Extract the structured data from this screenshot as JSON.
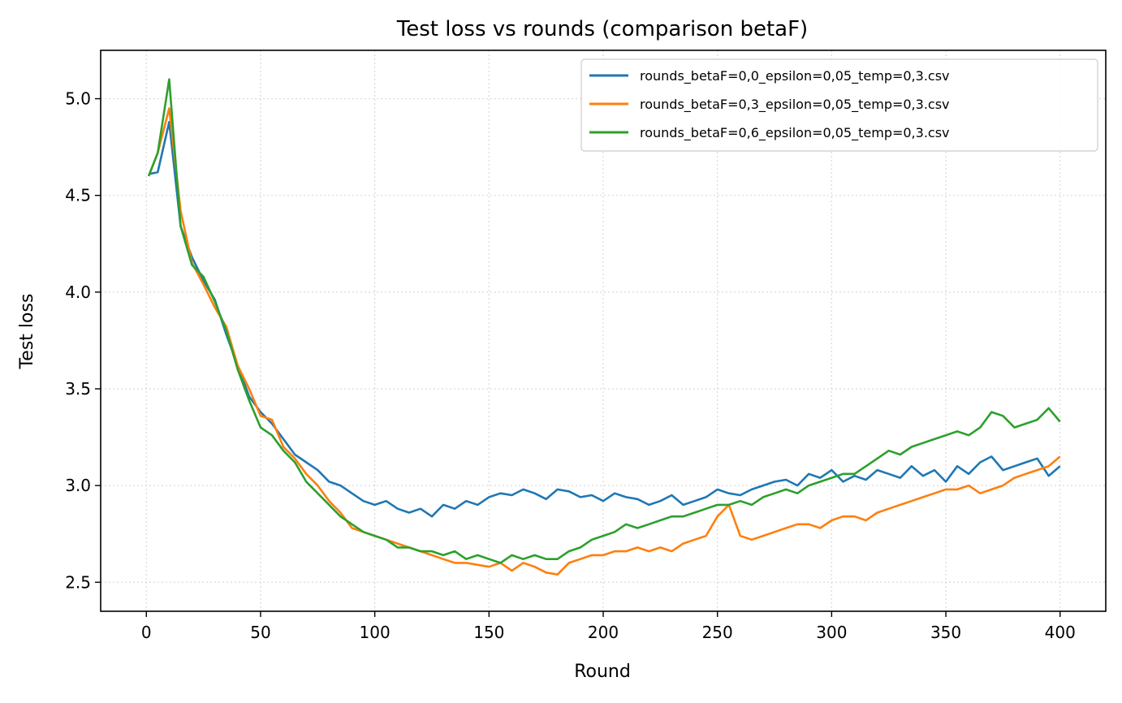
{
  "chart_data": {
    "type": "line",
    "title": "Test loss vs rounds (comparison betaF)",
    "xlabel": "Round",
    "ylabel": "Test loss",
    "xlim": [
      -20,
      420
    ],
    "ylim": [
      2.35,
      5.25
    ],
    "xticks": [
      0,
      50,
      100,
      150,
      200,
      250,
      300,
      350,
      400
    ],
    "yticks": [
      2.5,
      3.0,
      3.5,
      4.0,
      4.5,
      5.0
    ],
    "xtick_labels": [
      "0",
      "50",
      "100",
      "150",
      "200",
      "250",
      "300",
      "350",
      "400"
    ],
    "ytick_labels": [
      "2.5",
      "3.0",
      "3.5",
      "4.0",
      "4.5",
      "5.0"
    ],
    "grid": true,
    "legend_position": "top-right",
    "x_sampled_every": 5,
    "x": [
      1,
      5,
      10,
      15,
      20,
      25,
      30,
      35,
      40,
      45,
      50,
      55,
      60,
      65,
      70,
      75,
      80,
      85,
      90,
      95,
      100,
      105,
      110,
      115,
      120,
      125,
      130,
      135,
      140,
      145,
      150,
      155,
      160,
      165,
      170,
      175,
      180,
      185,
      190,
      195,
      200,
      205,
      210,
      215,
      220,
      225,
      230,
      235,
      240,
      245,
      250,
      255,
      260,
      265,
      270,
      275,
      280,
      285,
      290,
      295,
      300,
      305,
      310,
      315,
      320,
      325,
      330,
      335,
      340,
      345,
      350,
      355,
      360,
      365,
      370,
      375,
      380,
      385,
      390,
      395,
      400
    ],
    "series": [
      {
        "name": "rounds_betaF=0,0_epsilon=0,05_temp=0,3.csv",
        "color": "#1f77b4",
        "values": [
          4.61,
          4.62,
          4.88,
          4.34,
          4.18,
          4.06,
          3.96,
          3.78,
          3.62,
          3.46,
          3.38,
          3.32,
          3.24,
          3.16,
          3.12,
          3.08,
          3.02,
          3.0,
          2.96,
          2.92,
          2.9,
          2.92,
          2.88,
          2.86,
          2.88,
          2.84,
          2.9,
          2.88,
          2.92,
          2.9,
          2.94,
          2.96,
          2.95,
          2.98,
          2.96,
          2.93,
          2.98,
          2.97,
          2.94,
          2.95,
          2.92,
          2.96,
          2.94,
          2.93,
          2.9,
          2.92,
          2.95,
          2.9,
          2.92,
          2.94,
          2.98,
          2.96,
          2.95,
          2.98,
          3.0,
          3.02,
          3.03,
          3.0,
          3.06,
          3.04,
          3.08,
          3.02,
          3.05,
          3.03,
          3.08,
          3.06,
          3.04,
          3.1,
          3.05,
          3.08,
          3.02,
          3.1,
          3.06,
          3.12,
          3.15,
          3.08,
          3.1,
          3.12,
          3.14,
          3.05,
          3.1
        ]
      },
      {
        "name": "rounds_betaF=0,3_epsilon=0,05_temp=0,3.csv",
        "color": "#ff7f0e",
        "values": [
          4.6,
          4.72,
          4.95,
          4.42,
          4.15,
          4.04,
          3.92,
          3.82,
          3.62,
          3.5,
          3.36,
          3.34,
          3.2,
          3.14,
          3.06,
          3.0,
          2.92,
          2.86,
          2.78,
          2.76,
          2.74,
          2.72,
          2.7,
          2.68,
          2.66,
          2.64,
          2.62,
          2.6,
          2.6,
          2.59,
          2.58,
          2.6,
          2.56,
          2.6,
          2.58,
          2.55,
          2.54,
          2.6,
          2.62,
          2.64,
          2.64,
          2.66,
          2.66,
          2.68,
          2.66,
          2.68,
          2.66,
          2.7,
          2.72,
          2.74,
          2.84,
          2.9,
          2.74,
          2.72,
          2.74,
          2.76,
          2.78,
          2.8,
          2.8,
          2.78,
          2.82,
          2.84,
          2.84,
          2.82,
          2.86,
          2.88,
          2.9,
          2.92,
          2.94,
          2.96,
          2.98,
          2.98,
          3.0,
          2.96,
          2.98,
          3.0,
          3.04,
          3.06,
          3.08,
          3.1,
          3.15
        ]
      },
      {
        "name": "rounds_betaF=0,6_epsilon=0,05_temp=0,3.csv",
        "color": "#2ca02c",
        "values": [
          4.6,
          4.72,
          5.1,
          4.34,
          4.14,
          4.08,
          3.95,
          3.8,
          3.6,
          3.44,
          3.3,
          3.26,
          3.18,
          3.12,
          3.02,
          2.96,
          2.9,
          2.84,
          2.8,
          2.76,
          2.74,
          2.72,
          2.68,
          2.68,
          2.66,
          2.66,
          2.64,
          2.66,
          2.62,
          2.64,
          2.62,
          2.6,
          2.64,
          2.62,
          2.64,
          2.62,
          2.62,
          2.66,
          2.68,
          2.72,
          2.74,
          2.76,
          2.8,
          2.78,
          2.8,
          2.82,
          2.84,
          2.84,
          2.86,
          2.88,
          2.9,
          2.9,
          2.92,
          2.9,
          2.94,
          2.96,
          2.98,
          2.96,
          3.0,
          3.02,
          3.04,
          3.06,
          3.06,
          3.1,
          3.14,
          3.18,
          3.16,
          3.2,
          3.22,
          3.24,
          3.26,
          3.28,
          3.26,
          3.3,
          3.38,
          3.36,
          3.3,
          3.32,
          3.34,
          3.4,
          3.33
        ]
      }
    ]
  }
}
